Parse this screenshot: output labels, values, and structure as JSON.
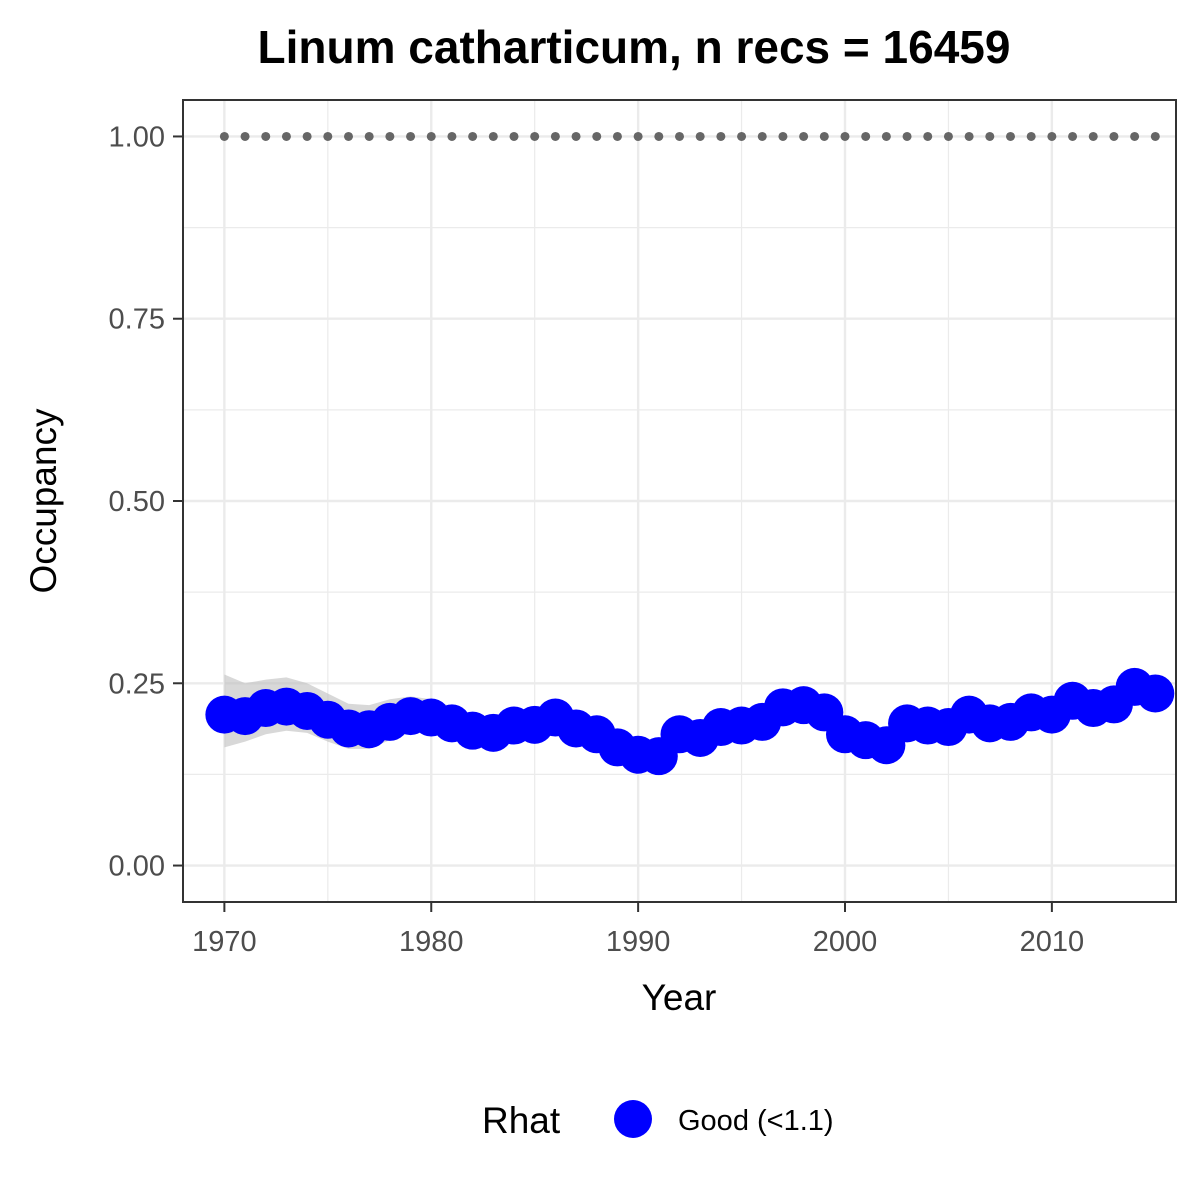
{
  "chart_data": {
    "type": "line",
    "title": "Linum catharticum, n recs = 16459",
    "xlabel": "Year",
    "ylabel": "Occupancy",
    "xlim": [
      1968,
      2016
    ],
    "ylim": [
      -0.05,
      1.05
    ],
    "x_ticks": [
      "1970",
      "1980",
      "1990",
      "2000",
      "2010"
    ],
    "y_ticks": [
      "0.00",
      "0.25",
      "0.50",
      "0.75",
      "1.00"
    ],
    "grid": true,
    "legend": {
      "position": "bottom",
      "title": "Rhat",
      "entries": [
        {
          "label": "Good (<1.1)",
          "color": "#0000ff"
        }
      ]
    },
    "colors": {
      "points": "#0000ff",
      "ribbon": "#bebebe",
      "upper_dots": "#666666",
      "panel_border": "#333333",
      "grid": "#ebebeb"
    },
    "series": [
      {
        "name": "Good (<1.1)",
        "x": [
          1970,
          1971,
          1972,
          1973,
          1974,
          1975,
          1976,
          1977,
          1978,
          1979,
          1980,
          1981,
          1982,
          1983,
          1984,
          1985,
          1986,
          1987,
          1988,
          1989,
          1990,
          1991,
          1992,
          1993,
          1994,
          1995,
          1996,
          1997,
          1998,
          1999,
          2000,
          2001,
          2002,
          2003,
          2004,
          2005,
          2006,
          2007,
          2008,
          2009,
          2010,
          2011,
          2012,
          2013,
          2014,
          2015
        ],
        "y": [
          0.207,
          0.205,
          0.216,
          0.218,
          0.212,
          0.2,
          0.188,
          0.187,
          0.197,
          0.205,
          0.203,
          0.195,
          0.185,
          0.182,
          0.192,
          0.193,
          0.203,
          0.188,
          0.18,
          0.162,
          0.152,
          0.15,
          0.18,
          0.175,
          0.19,
          0.192,
          0.197,
          0.217,
          0.22,
          0.21,
          0.18,
          0.172,
          0.165,
          0.195,
          0.192,
          0.19,
          0.207,
          0.195,
          0.197,
          0.21,
          0.207,
          0.226,
          0.216,
          0.221,
          0.245,
          0.236
        ],
        "lower": [
          0.162,
          0.17,
          0.18,
          0.185,
          0.182,
          0.17,
          0.16,
          0.16,
          0.172,
          0.182,
          0.182,
          0.176,
          0.168,
          0.166,
          0.177,
          0.178,
          0.188,
          0.174,
          0.166,
          0.149,
          0.14,
          0.138,
          0.166,
          0.162,
          0.177,
          0.179,
          0.184,
          0.203,
          0.206,
          0.197,
          0.167,
          0.159,
          0.153,
          0.181,
          0.179,
          0.177,
          0.193,
          0.182,
          0.184,
          0.196,
          0.193,
          0.211,
          0.202,
          0.206,
          0.229,
          0.22
        ],
        "upper": [
          0.262,
          0.25,
          0.255,
          0.258,
          0.25,
          0.236,
          0.222,
          0.22,
          0.228,
          0.232,
          0.228,
          0.218,
          0.206,
          0.201,
          0.209,
          0.21,
          0.22,
          0.204,
          0.196,
          0.177,
          0.166,
          0.164,
          0.196,
          0.19,
          0.205,
          0.207,
          0.212,
          0.233,
          0.236,
          0.225,
          0.195,
          0.187,
          0.179,
          0.211,
          0.208,
          0.205,
          0.222,
          0.21,
          0.212,
          0.226,
          0.222,
          0.242,
          0.232,
          0.237,
          0.262,
          0.253
        ]
      },
      {
        "name": "",
        "x": [
          1970,
          1971,
          1972,
          1973,
          1974,
          1975,
          1976,
          1977,
          1978,
          1979,
          1980,
          1981,
          1982,
          1983,
          1984,
          1985,
          1986,
          1987,
          1988,
          1989,
          1990,
          1991,
          1992,
          1993,
          1994,
          1995,
          1996,
          1997,
          1998,
          1999,
          2000,
          2001,
          2002,
          2003,
          2004,
          2005,
          2006,
          2007,
          2008,
          2009,
          2010,
          2011,
          2012,
          2013,
          2014,
          2015
        ],
        "y": [
          1,
          1,
          1,
          1,
          1,
          1,
          1,
          1,
          1,
          1,
          1,
          1,
          1,
          1,
          1,
          1,
          1,
          1,
          1,
          1,
          1,
          1,
          1,
          1,
          1,
          1,
          1,
          1,
          1,
          1,
          1,
          1,
          1,
          1,
          1,
          1,
          1,
          1,
          1,
          1,
          1,
          1,
          1,
          1,
          1,
          1
        ]
      }
    ]
  }
}
